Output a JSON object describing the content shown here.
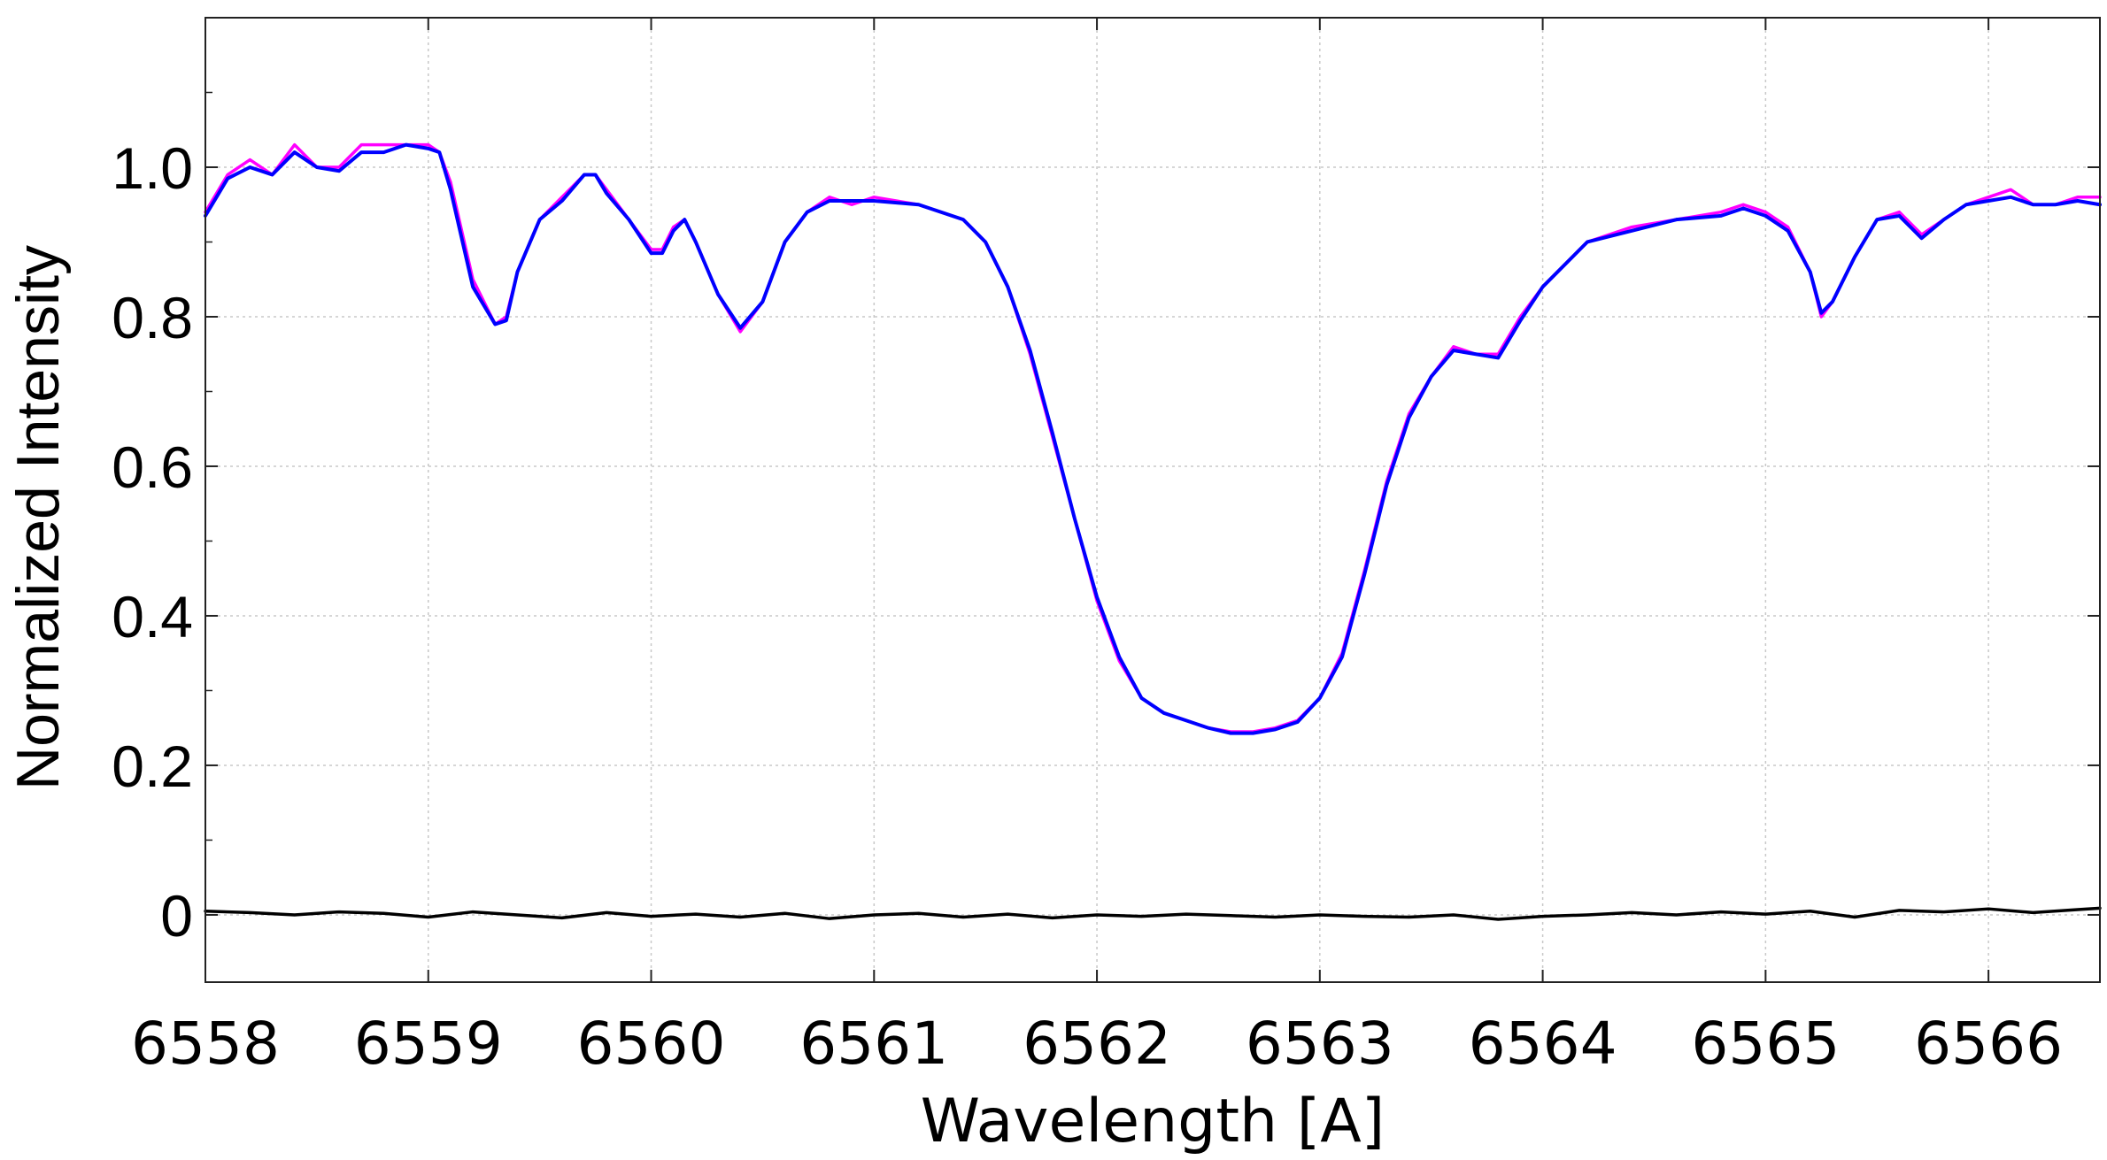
{
  "chart_data": {
    "type": "line",
    "title": "",
    "xlabel": "Wavelength [A]",
    "ylabel": "Normalized Intensity",
    "xlim": [
      6558.0,
      6566.5
    ],
    "ylim": [
      -0.09,
      1.2
    ],
    "xticks": [
      6558,
      6559,
      6560,
      6561,
      6562,
      6563,
      6564,
      6565,
      6566
    ],
    "xtick_labels": [
      "6558",
      "6559",
      "6560",
      "6561",
      "6562",
      "6563",
      "6564",
      "6565",
      "6566"
    ],
    "yticks": [
      0,
      0.2,
      0.4,
      0.6,
      0.8,
      1.0
    ],
    "ytick_labels": [
      "0",
      "0.2",
      "0.4",
      "0.6",
      "0.8",
      "1.0"
    ],
    "grid": true,
    "series": [
      {
        "color": "#ff00ff",
        "x": [
          6558.0,
          6558.1,
          6558.2,
          6558.3,
          6558.4,
          6558.5,
          6558.6,
          6558.7,
          6558.8,
          6558.9,
          6559.0,
          6559.05,
          6559.1,
          6559.2,
          6559.3,
          6559.35,
          6559.4,
          6559.5,
          6559.6,
          6559.7,
          6559.75,
          6559.8,
          6559.9,
          6560.0,
          6560.05,
          6560.1,
          6560.15,
          6560.2,
          6560.3,
          6560.4,
          6560.5,
          6560.6,
          6560.7,
          6560.8,
          6560.9,
          6561.0,
          6561.2,
          6561.4,
          6561.5,
          6561.6,
          6561.7,
          6561.8,
          6561.9,
          6562.0,
          6562.1,
          6562.2,
          6562.3,
          6562.4,
          6562.5,
          6562.6,
          6562.7,
          6562.8,
          6562.9,
          6563.0,
          6563.1,
          6563.2,
          6563.3,
          6563.4,
          6563.5,
          6563.6,
          6563.7,
          6563.8,
          6563.9,
          6564.0,
          6564.2,
          6564.4,
          6564.6,
          6564.8,
          6564.9,
          6565.0,
          6565.1,
          6565.2,
          6565.25,
          6565.3,
          6565.4,
          6565.5,
          6565.6,
          6565.7,
          6565.8,
          6565.9,
          6566.0,
          6566.1,
          6566.2,
          6566.3,
          6566.4,
          6566.5
        ],
        "y": [
          0.94,
          0.99,
          1.01,
          0.99,
          1.03,
          1.0,
          1.0,
          1.03,
          1.03,
          1.03,
          1.03,
          1.02,
          0.98,
          0.85,
          0.79,
          0.8,
          0.86,
          0.93,
          0.96,
          0.99,
          0.99,
          0.97,
          0.93,
          0.89,
          0.89,
          0.92,
          0.93,
          0.9,
          0.83,
          0.78,
          0.82,
          0.9,
          0.94,
          0.96,
          0.95,
          0.96,
          0.95,
          0.93,
          0.9,
          0.84,
          0.75,
          0.64,
          0.53,
          0.42,
          0.34,
          0.29,
          0.27,
          0.26,
          0.25,
          0.245,
          0.245,
          0.25,
          0.26,
          0.29,
          0.35,
          0.46,
          0.58,
          0.67,
          0.72,
          0.76,
          0.75,
          0.75,
          0.8,
          0.84,
          0.9,
          0.92,
          0.93,
          0.94,
          0.95,
          0.94,
          0.92,
          0.86,
          0.8,
          0.82,
          0.88,
          0.93,
          0.94,
          0.91,
          0.93,
          0.95,
          0.96,
          0.97,
          0.95,
          0.95,
          0.96,
          0.96
        ]
      },
      {
        "color": "#0000ff",
        "x": [
          6558.0,
          6558.1,
          6558.2,
          6558.3,
          6558.4,
          6558.5,
          6558.6,
          6558.7,
          6558.8,
          6558.9,
          6559.0,
          6559.05,
          6559.1,
          6559.2,
          6559.3,
          6559.35,
          6559.4,
          6559.5,
          6559.6,
          6559.7,
          6559.75,
          6559.8,
          6559.9,
          6560.0,
          6560.05,
          6560.1,
          6560.15,
          6560.2,
          6560.3,
          6560.4,
          6560.5,
          6560.6,
          6560.7,
          6560.8,
          6560.9,
          6561.0,
          6561.2,
          6561.4,
          6561.5,
          6561.6,
          6561.7,
          6561.8,
          6561.9,
          6562.0,
          6562.1,
          6562.2,
          6562.3,
          6562.4,
          6562.5,
          6562.6,
          6562.7,
          6562.8,
          6562.9,
          6563.0,
          6563.1,
          6563.2,
          6563.3,
          6563.4,
          6563.5,
          6563.6,
          6563.7,
          6563.8,
          6563.9,
          6564.0,
          6564.2,
          6564.4,
          6564.6,
          6564.8,
          6564.9,
          6565.0,
          6565.1,
          6565.2,
          6565.25,
          6565.3,
          6565.4,
          6565.5,
          6565.6,
          6565.7,
          6565.8,
          6565.9,
          6566.0,
          6566.1,
          6566.2,
          6566.3,
          6566.4,
          6566.5
        ],
        "y": [
          0.935,
          0.985,
          1.0,
          0.99,
          1.02,
          1.0,
          0.995,
          1.02,
          1.02,
          1.03,
          1.025,
          1.02,
          0.97,
          0.84,
          0.79,
          0.795,
          0.86,
          0.93,
          0.955,
          0.99,
          0.99,
          0.965,
          0.93,
          0.885,
          0.885,
          0.915,
          0.93,
          0.9,
          0.83,
          0.785,
          0.82,
          0.9,
          0.94,
          0.955,
          0.955,
          0.955,
          0.95,
          0.93,
          0.9,
          0.84,
          0.755,
          0.645,
          0.53,
          0.425,
          0.345,
          0.29,
          0.27,
          0.26,
          0.25,
          0.243,
          0.243,
          0.248,
          0.258,
          0.29,
          0.345,
          0.455,
          0.575,
          0.665,
          0.72,
          0.755,
          0.75,
          0.745,
          0.795,
          0.84,
          0.9,
          0.915,
          0.93,
          0.935,
          0.945,
          0.935,
          0.915,
          0.86,
          0.805,
          0.82,
          0.88,
          0.93,
          0.935,
          0.905,
          0.93,
          0.95,
          0.955,
          0.96,
          0.95,
          0.95,
          0.955,
          0.95
        ]
      },
      {
        "color": "#000000",
        "x": [
          6558.0,
          6558.2,
          6558.4,
          6558.6,
          6558.8,
          6559.0,
          6559.2,
          6559.4,
          6559.6,
          6559.8,
          6560.0,
          6560.2,
          6560.4,
          6560.6,
          6560.8,
          6561.0,
          6561.2,
          6561.4,
          6561.6,
          6561.8,
          6562.0,
          6562.2,
          6562.4,
          6562.6,
          6562.8,
          6563.0,
          6563.2,
          6563.4,
          6563.6,
          6563.8,
          6564.0,
          6564.2,
          6564.4,
          6564.6,
          6564.8,
          6565.0,
          6565.2,
          6565.4,
          6565.6,
          6565.8,
          6566.0,
          6566.2,
          6566.4,
          6566.5
        ],
        "y": [
          0.005,
          0.003,
          0.0,
          0.004,
          0.002,
          -0.003,
          0.004,
          0.0,
          -0.004,
          0.003,
          -0.002,
          0.001,
          -0.003,
          0.002,
          -0.005,
          0.0,
          0.002,
          -0.003,
          0.001,
          -0.004,
          0.0,
          -0.002,
          0.001,
          -0.001,
          -0.003,
          0.0,
          -0.002,
          -0.003,
          0.0,
          -0.006,
          -0.002,
          0.0,
          0.003,
          0.0,
          0.004,
          0.001,
          0.005,
          -0.003,
          0.006,
          0.004,
          0.008,
          0.003,
          0.007,
          0.009
        ]
      }
    ]
  }
}
